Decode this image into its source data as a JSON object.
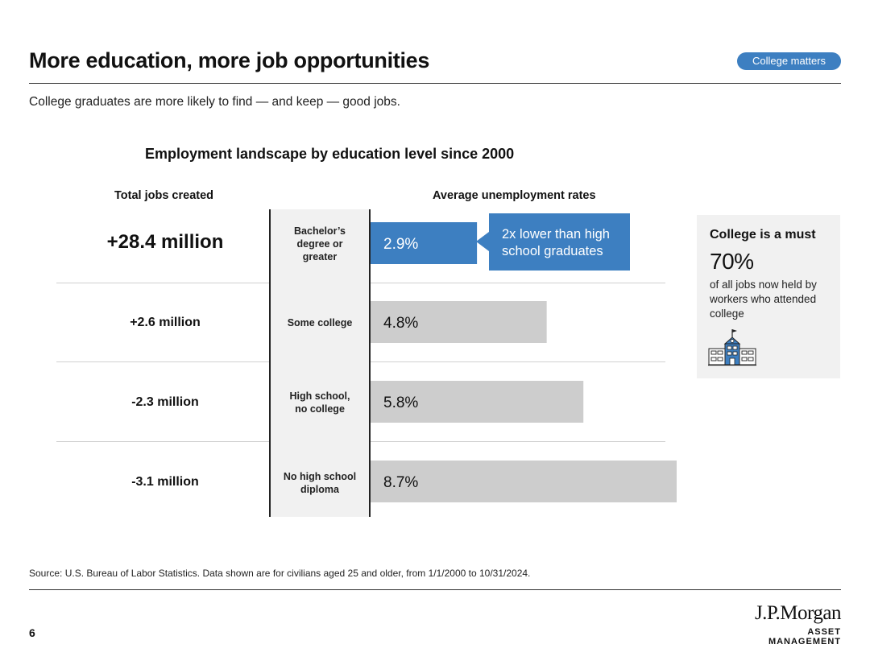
{
  "header": {
    "title": "More education, more job opportunities",
    "badge": "College matters",
    "subtitle": "College graduates are more likely to find — and keep — good jobs."
  },
  "colors": {
    "accent": "#3d7fc1",
    "bar_gray": "#cdcdcd",
    "panel_gray": "#f1f1f1"
  },
  "chart_data": {
    "type": "bar",
    "orientation": "horizontal",
    "title": "Employment landscape by education level since 2000",
    "left_column_label": "Total jobs created",
    "right_column_label": "Average unemployment rates",
    "categories": [
      "Bachelor’s degree or greater",
      "Some college",
      "High school, no college",
      "No high school diploma"
    ],
    "category_lines": [
      [
        "Bachelor’s",
        "degree or",
        "greater"
      ],
      [
        "Some college"
      ],
      [
        "High school,",
        "no college"
      ],
      [
        "No high school",
        "diploma"
      ]
    ],
    "jobs_created": [
      "+28.4 million",
      "+2.6 million",
      "-2.3 million",
      "-3.1 million"
    ],
    "values": [
      2.9,
      4.8,
      5.8,
      8.7
    ],
    "value_labels": [
      "2.9%",
      "4.8%",
      "5.8%",
      "8.7%"
    ],
    "highlight_index": 0,
    "xlim": [
      0,
      9
    ],
    "annotation": "2x lower than high school graduates"
  },
  "sidebar": {
    "title": "College is a must",
    "stat": "70%",
    "text": "of all jobs now held by workers who attended college",
    "icon": "school-building-icon"
  },
  "footer": {
    "source": "Source: U.S. Bureau of Labor Statistics. Data shown are for civilians aged 25 and older, from 1/1/2000 to 10/31/2024.",
    "page_number": "6",
    "logo_name": "J.P.Morgan",
    "logo_sub": "ASSET MANAGEMENT"
  }
}
